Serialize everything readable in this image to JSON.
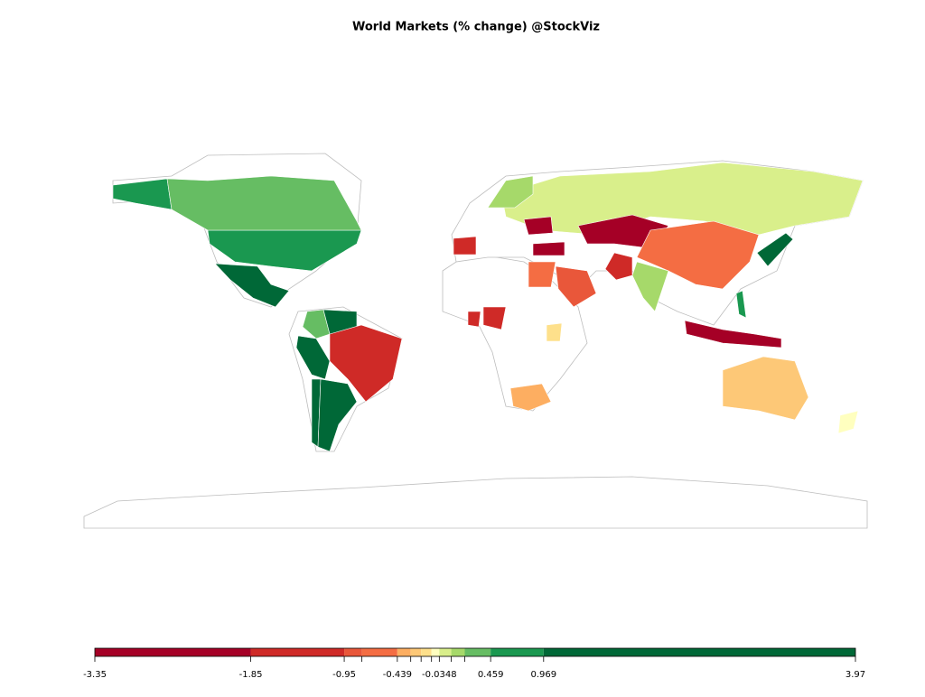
{
  "chart_data": {
    "type": "choropleth",
    "title": "World Markets (% change) @StockViz",
    "values": [
      0.6,
      0.3,
      1.5,
      0.3,
      1.8,
      1.2,
      -1.5,
      1.3,
      2.0,
      0.05,
      -2.5,
      -0.5,
      0.1,
      -1.2,
      -0.9,
      -0.6,
      -2.0,
      -2.4,
      -1.3,
      -1.6,
      -0.2,
      -0.4,
      -1.0,
      0.2,
      1.0,
      0.7,
      -2.8,
      -0.25,
      -0.1
    ],
    "colorbar": {
      "lim": [
        -3.35,
        3.97
      ],
      "ticks": [
        -3.35,
        -1.85,
        -0.95,
        -0.439,
        -0.0348,
        0.459,
        0.969,
        3.97
      ],
      "breaks": [
        -3.35,
        -1.85,
        -0.95,
        -0.78,
        -0.439,
        -0.31,
        -0.21,
        -0.11,
        -0.0348,
        0.08,
        0.21,
        0.459,
        0.969,
        3.97
      ],
      "colors": [
        "#a50026",
        "#cf2a27",
        "#e9573a",
        "#f46d43",
        "#fdae61",
        "#fdc877",
        "#fee08b",
        "#ffffbf",
        "#d9ef8b",
        "#a6d96a",
        "#66bd63",
        "#1a9850",
        "#006837"
      ]
    }
  }
}
